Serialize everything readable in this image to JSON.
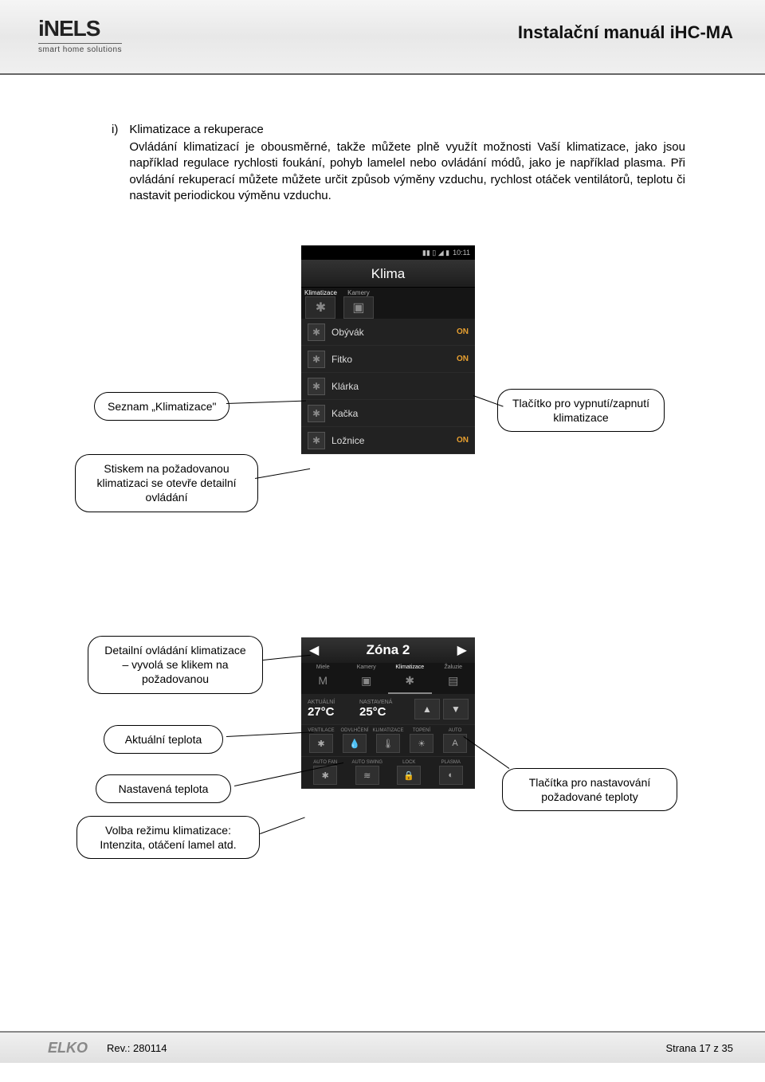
{
  "header": {
    "title": "Instalační manuál iHC-MA",
    "logo_text": "iNELS",
    "logo_sub": "smart home solutions"
  },
  "section": {
    "list_marker": "i)",
    "title": "Klimatizace a rekuperace",
    "para1": "Ovládání klimatizací je obousměrné, takže můžete plně využít možnosti Vaší klimatizace, jako jsou například regulace rychlosti foukání, pohyb lamelel nebo ovládání módů, jako je například plasma. Při ovládání rekuperací můžete můžete určit způsob výměny vzduchu, rychlost otáček ventilátorů, teplotu či nastavit periodickou výměnu vzduchu."
  },
  "phone1": {
    "status_time": "10:11",
    "title": "Klima",
    "tabs": [
      {
        "label": "Klimatizace",
        "icon": "✱"
      },
      {
        "label": "Kamery",
        "icon": "▣"
      }
    ],
    "rows": [
      {
        "label": "Obývák",
        "on": "ON"
      },
      {
        "label": "Fitko",
        "on": "ON"
      },
      {
        "label": "Klárka",
        "on": ""
      },
      {
        "label": "Kačka",
        "on": ""
      },
      {
        "label": "Ložnice",
        "on": "ON"
      }
    ]
  },
  "phone2": {
    "zone_title": "Zóna 2",
    "tabs": [
      "Miele",
      "Kamery",
      "Klimatizace",
      "Žaluzie"
    ],
    "tab_icons": [
      "M",
      "▣",
      "✱",
      "▤"
    ],
    "temp_actual_label": "AKTUÁLNÍ",
    "temp_actual": "27°C",
    "temp_set_label": "NASTAVENÁ",
    "temp_set": "25°C",
    "mode_row1": [
      {
        "label": "VENTILACE",
        "icon": "✱"
      },
      {
        "label": "ODVLHČENÍ",
        "icon": "💧"
      },
      {
        "label": "KLIMATIZACE",
        "icon": "🌡"
      },
      {
        "label": "TOPENÍ",
        "icon": "☀"
      },
      {
        "label": "AUTO",
        "icon": "A"
      }
    ],
    "mode_row2": [
      {
        "label": "AUTO FAN",
        "icon": "✱"
      },
      {
        "label": "AUTO SWING",
        "icon": "≋"
      },
      {
        "label": "LOCK",
        "icon": "🔒"
      },
      {
        "label": "PLASMA",
        "icon": "◐"
      }
    ]
  },
  "callouts": {
    "c1": "Seznam „Klimatizace\"",
    "c2": "Tlačítko pro vypnutí/zapnutí klimatizace",
    "c3": "Stiskem na požadovanou klimatizaci se otevře detailní ovládání",
    "c4": "Detailní ovládání klimatizace – vyvolá se klikem na požadovanou",
    "c5": "Aktuální teplota",
    "c6": "Nastavená teplota",
    "c7": "Volba režimu klimatizace: Intenzita, otáčení lamel atd.",
    "c8": "Tlačítka pro nastavování požadované teploty"
  },
  "footer": {
    "logo": "ELKO",
    "rev": "Rev.: 280114",
    "page": "Strana 17 z 35"
  }
}
